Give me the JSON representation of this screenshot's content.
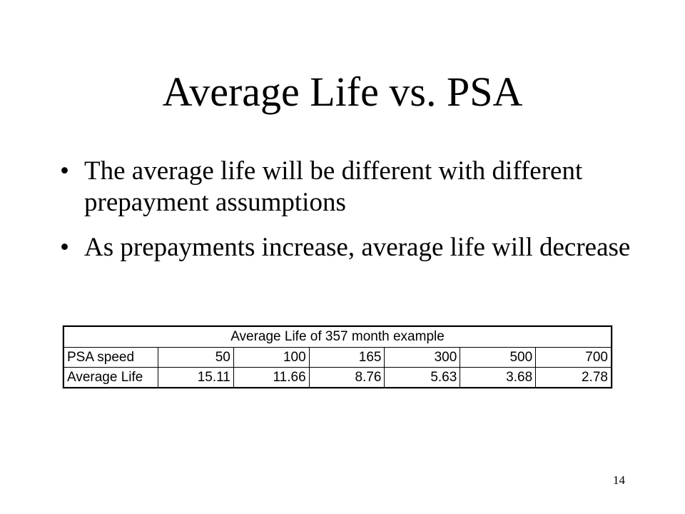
{
  "slide": {
    "title": "Average Life vs. PSA",
    "bullets": [
      "The average life will be different with different prepayment assumptions",
      "As prepayments increase, average life will decrease"
    ],
    "bullet_glyph": "•",
    "page_number": "14"
  },
  "table": {
    "caption": "Average Life of 357 month example",
    "rows": [
      {
        "label": "PSA speed",
        "values": [
          "50",
          "100",
          "165",
          "300",
          "500",
          "700"
        ]
      },
      {
        "label": "Average Life",
        "values": [
          "15.11",
          "11.66",
          "8.76",
          "5.63",
          "3.68",
          "2.78"
        ]
      }
    ]
  }
}
